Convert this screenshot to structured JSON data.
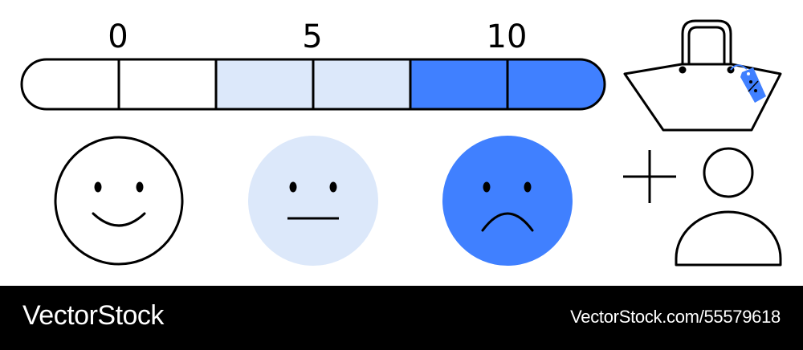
{
  "scale": {
    "labels": [
      "0",
      "5",
      "10"
    ],
    "segment_colors": [
      "#ffffff",
      "#ffffff",
      "#dce8fa",
      "#dce8fa",
      "#4080ff",
      "#4080ff"
    ]
  },
  "faces": [
    {
      "name": "happy-face-icon",
      "fill": "#ffffff"
    },
    {
      "name": "neutral-face-icon",
      "fill": "#dce8fa"
    },
    {
      "name": "sad-face-icon",
      "fill": "#4080ff"
    }
  ],
  "icons": [
    "shopping-bag-icon",
    "price-tag-icon",
    "plus-icon",
    "user-icon"
  ],
  "colors": {
    "accent": "#4080ff",
    "light_accent": "#dce8fa",
    "stroke": "#000000"
  },
  "watermark": {
    "brand": "VectorStock",
    "image_id": "VectorStock.com/55579618"
  }
}
